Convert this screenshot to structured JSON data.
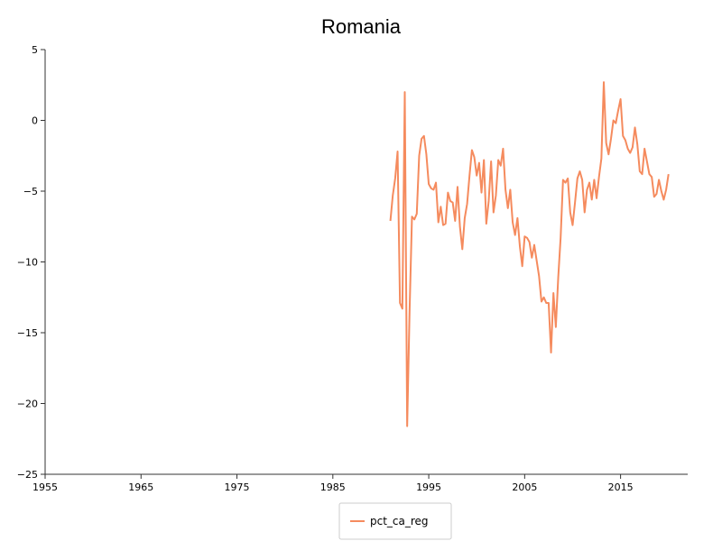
{
  "chart_data": {
    "type": "line",
    "title": "Romania",
    "xlabel": "",
    "ylabel": "",
    "xlim": [
      1955,
      2022
    ],
    "ylim": [
      -25,
      5
    ],
    "x_ticks": [
      1955,
      1965,
      1975,
      1985,
      1995,
      2005,
      2015
    ],
    "y_ticks": [
      5,
      0,
      -5,
      -10,
      -15,
      -20,
      -25
    ],
    "grid": false,
    "legend_position": "bottom-center",
    "series": [
      {
        "name": "pct_ca_reg",
        "color": "#f58b5e",
        "x": [
          1991.0,
          1991.25,
          1991.5,
          1991.75,
          1992.0,
          1992.25,
          1992.5,
          1992.75,
          1993.0,
          1993.25,
          1993.5,
          1993.75,
          1994.0,
          1994.25,
          1994.5,
          1994.75,
          1995.0,
          1995.25,
          1995.5,
          1995.75,
          1996.0,
          1996.25,
          1996.5,
          1996.75,
          1997.0,
          1997.25,
          1997.5,
          1997.75,
          1998.0,
          1998.25,
          1998.5,
          1998.75,
          1999.0,
          1999.25,
          1999.5,
          1999.75,
          2000.0,
          2000.25,
          2000.5,
          2000.75,
          2001.0,
          2001.25,
          2001.5,
          2001.75,
          2002.0,
          2002.25,
          2002.5,
          2002.75,
          2003.0,
          2003.25,
          2003.5,
          2003.75,
          2004.0,
          2004.25,
          2004.5,
          2004.75,
          2005.0,
          2005.25,
          2005.5,
          2005.75,
          2006.0,
          2006.25,
          2006.5,
          2006.75,
          2007.0,
          2007.25,
          2007.5,
          2007.75,
          2008.0,
          2008.25,
          2008.5,
          2008.75,
          2009.0,
          2009.25,
          2009.5,
          2009.75,
          2010.0,
          2010.25,
          2010.5,
          2010.75,
          2011.0,
          2011.25,
          2011.5,
          2011.75,
          2012.0,
          2012.25,
          2012.5,
          2012.75,
          2013.0,
          2013.25,
          2013.5,
          2013.75,
          2014.0,
          2014.25,
          2014.5,
          2014.75,
          2015.0,
          2015.25,
          2015.5,
          2015.75,
          2016.0,
          2016.25,
          2016.5,
          2016.75,
          2017.0,
          2017.25,
          2017.5,
          2017.75,
          2018.0,
          2018.25,
          2018.5,
          2018.75,
          2019.0,
          2019.25,
          2019.5,
          2019.75,
          2020.0
        ],
        "values": [
          -7.1,
          -5.3,
          -4.1,
          -2.2,
          -12.9,
          -13.3,
          2.0,
          -21.6,
          -13.5,
          -6.8,
          -7.0,
          -6.6,
          -2.5,
          -1.3,
          -1.1,
          -2.4,
          -4.5,
          -4.8,
          -4.9,
          -4.4,
          -7.2,
          -6.1,
          -7.4,
          -7.3,
          -5.1,
          -5.7,
          -5.8,
          -7.1,
          -4.7,
          -7.5,
          -9.1,
          -6.9,
          -5.9,
          -3.9,
          -2.1,
          -2.6,
          -3.9,
          -3.0,
          -5.1,
          -2.8,
          -7.3,
          -5.7,
          -2.9,
          -6.5,
          -5.3,
          -2.8,
          -3.2,
          -2.0,
          -4.9,
          -6.2,
          -4.9,
          -7.2,
          -8.1,
          -6.9,
          -8.9,
          -10.3,
          -8.2,
          -8.3,
          -8.6,
          -9.7,
          -8.8,
          -9.9,
          -11.0,
          -12.8,
          -12.5,
          -12.9,
          -12.9,
          -16.4,
          -12.2,
          -14.6,
          -11.1,
          -8.3,
          -4.2,
          -4.4,
          -4.1,
          -6.5,
          -7.4,
          -5.8,
          -4.1,
          -3.6,
          -4.2,
          -6.5,
          -4.9,
          -4.4,
          -5.6,
          -4.2,
          -5.5,
          -4.0,
          -2.7,
          2.7,
          -1.6,
          -2.4,
          -1.3,
          0.0,
          -0.2,
          0.7,
          1.5,
          -1.1,
          -1.4,
          -2.0,
          -2.3,
          -1.9,
          -0.5,
          -1.7,
          -3.6,
          -3.8,
          -2.0,
          -2.9,
          -3.8,
          -4.0,
          -5.4,
          -5.2,
          -4.2,
          -5.0,
          -5.6,
          -4.9,
          -3.8
        ]
      }
    ]
  }
}
